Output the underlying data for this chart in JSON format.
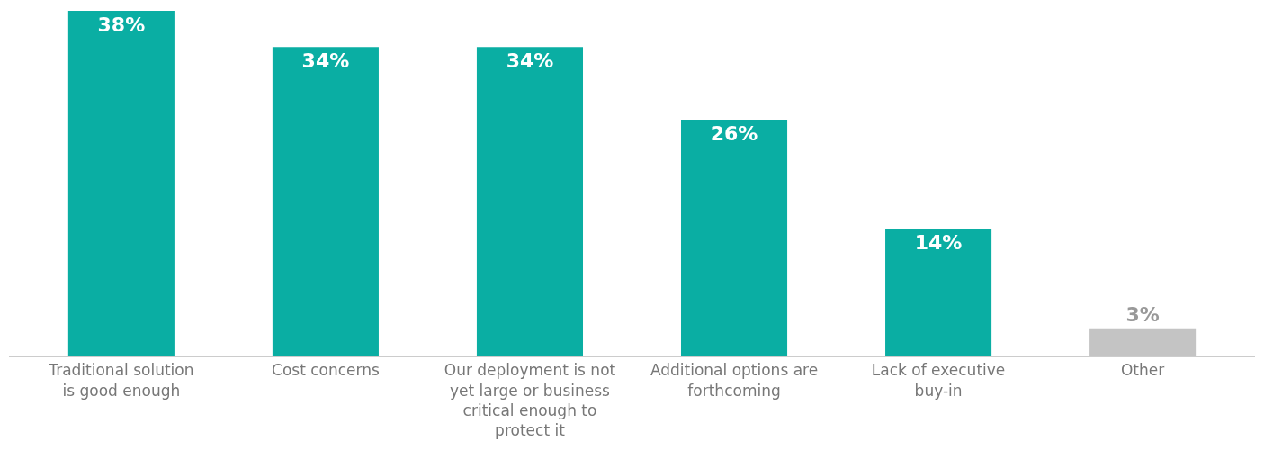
{
  "chart_data": {
    "type": "bar",
    "categories": [
      "Traditional solution is good enough",
      "Cost concerns",
      "Our deployment is not yet large or business critical enough to protect it",
      "Additional options are forthcoming",
      "Lack of executive buy-in",
      "Other"
    ],
    "values": [
      38,
      34,
      34,
      26,
      14,
      3
    ],
    "value_labels": [
      "38%",
      "34%",
      "34%",
      "26%",
      "14%",
      "3%"
    ],
    "colors": [
      "#0aaea3",
      "#0aaea3",
      "#0aaea3",
      "#0aaea3",
      "#0aaea3",
      "#c4c4c4"
    ],
    "ylim": [
      0,
      38
    ],
    "grid": false,
    "tick_labels": "x"
  }
}
